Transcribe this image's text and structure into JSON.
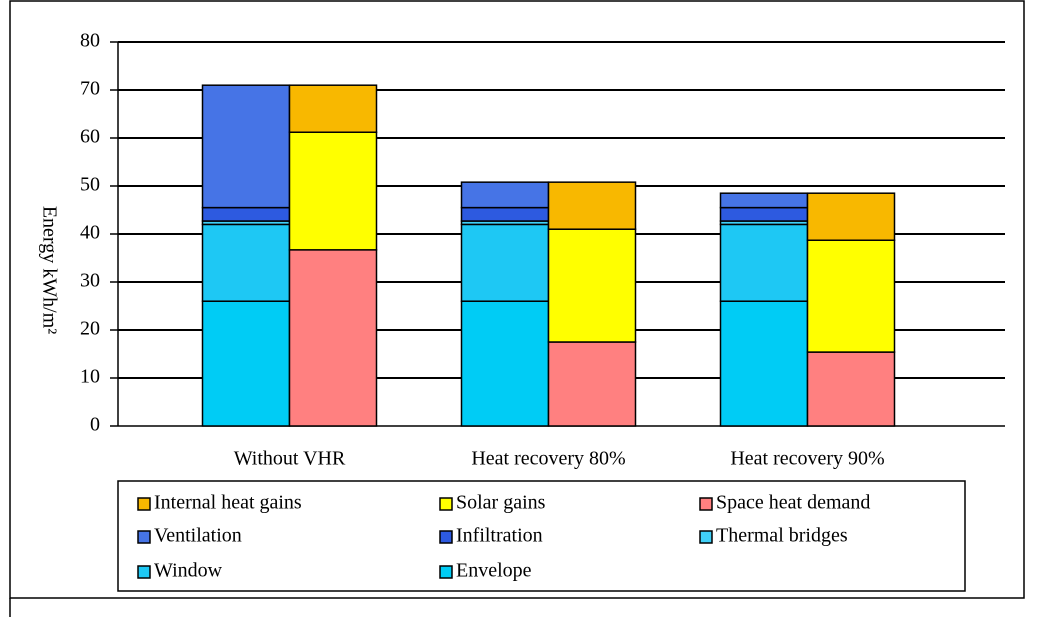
{
  "chart_data": {
    "type": "stacked-bar-groups",
    "ylabel": "Energy kWh/m²",
    "categories": [
      "Without VHR",
      "Heat recovery 80%",
      "Heat recovery 90%"
    ],
    "series": [
      {
        "name": "Internal heat gains",
        "color": "#f8b800",
        "stack": "gains",
        "values": [
          9.8,
          9.8,
          9.8
        ]
      },
      {
        "name": "Solar gains",
        "color": "#ffff00",
        "stack": "gains",
        "values": [
          24.5,
          23.5,
          23.3
        ]
      },
      {
        "name": "Space heat demand",
        "color": "#ff8080",
        "stack": "gains",
        "values": [
          36.7,
          17.5,
          15.4
        ]
      },
      {
        "name": "Ventilation",
        "color": "#4674e6",
        "stack": "losses",
        "values": [
          25.5,
          5.3,
          3.0
        ]
      },
      {
        "name": "Infiltration",
        "color": "#2d5ae0",
        "stack": "losses",
        "values": [
          2.8,
          2.8,
          2.8
        ]
      },
      {
        "name": "Thermal bridges",
        "color": "#40d0f8",
        "stack": "losses",
        "values": [
          0.7,
          0.7,
          0.7
        ]
      },
      {
        "name": "Window",
        "color": "#1ec8f4",
        "stack": "losses",
        "values": [
          16,
          16,
          16
        ]
      },
      {
        "name": "Envelope",
        "color": "#00ccf5",
        "stack": "losses",
        "values": [
          26,
          26,
          26
        ]
      }
    ],
    "stacks": [
      "losses",
      "gains"
    ],
    "ylim": [
      0,
      80
    ],
    "yticks": [
      0,
      10,
      20,
      30,
      40,
      50,
      60,
      70,
      80
    ],
    "grid": true,
    "legend": "bottom"
  }
}
